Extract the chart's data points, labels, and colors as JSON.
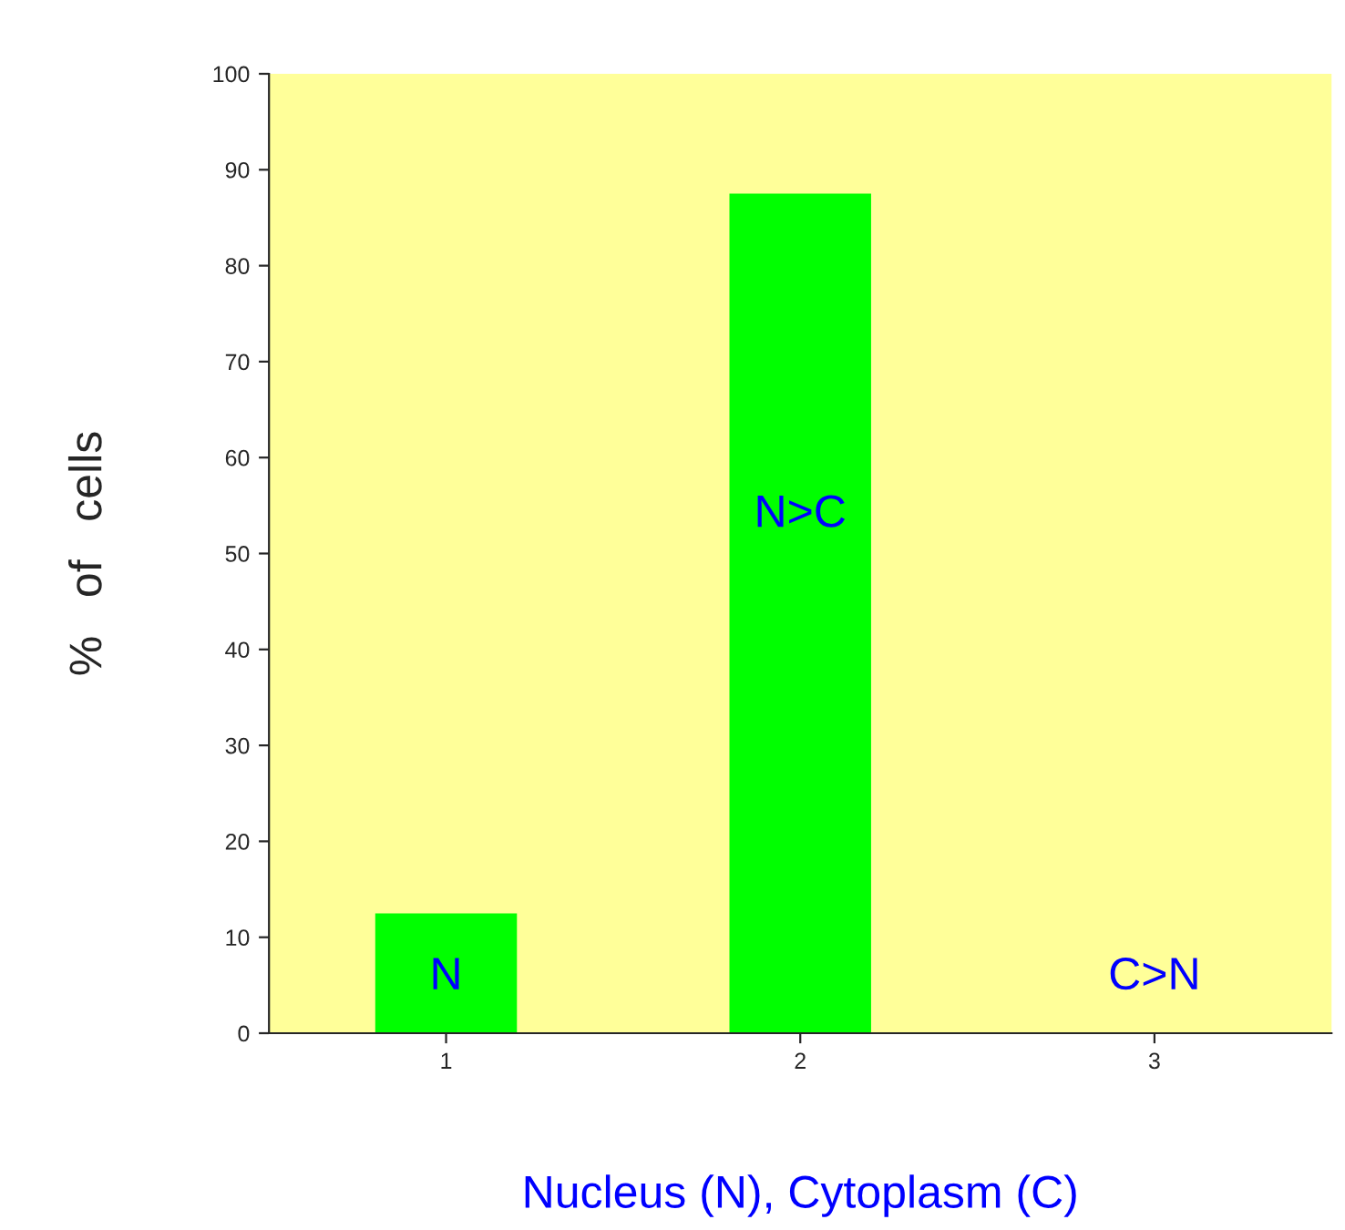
{
  "chart_data": {
    "type": "bar",
    "xlabel": "Nucleus (N), Cytoplasm (C)",
    "ylabel": "%   of   cells",
    "categories": [
      "1",
      "2",
      "3"
    ],
    "values": [
      12.5,
      87.5,
      0
    ],
    "color": "#00ff00",
    "ylim": [
      0,
      100
    ],
    "yticks": [
      0,
      10,
      20,
      30,
      40,
      50,
      60,
      70,
      80,
      90,
      100
    ],
    "grid": false,
    "legend": false,
    "annotations": [
      "N",
      "N>C",
      "C>N"
    ]
  }
}
